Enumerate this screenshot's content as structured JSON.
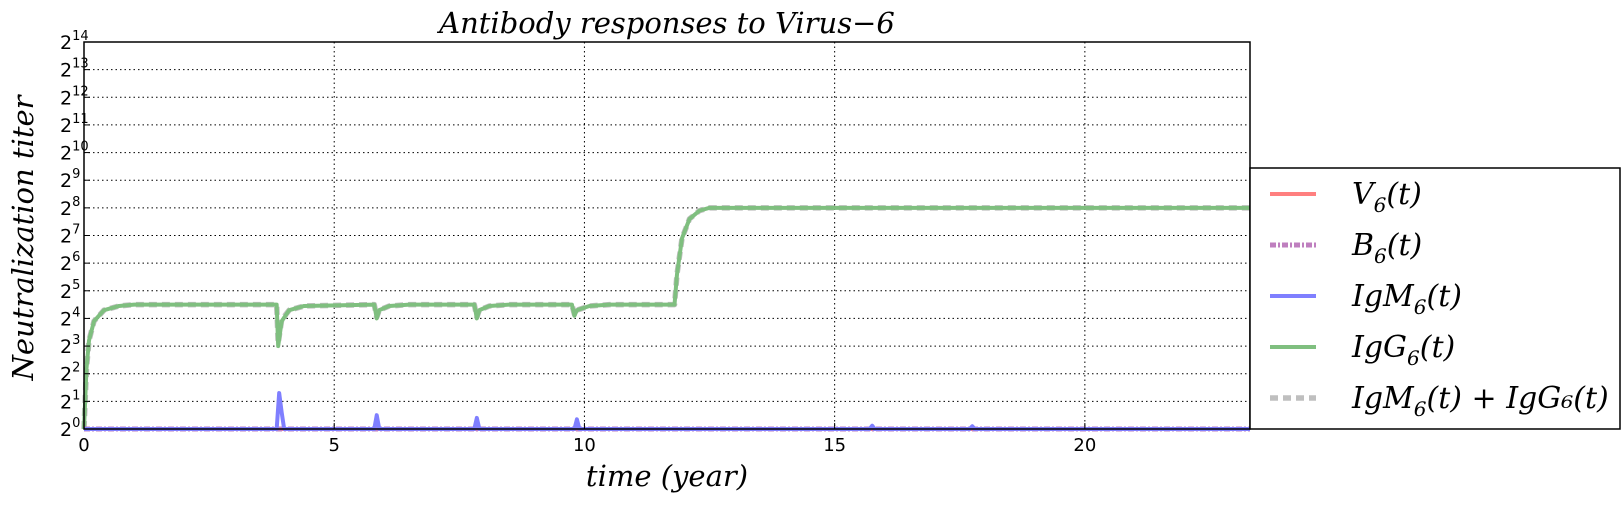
{
  "chart_data": {
    "type": "line",
    "title": "Antibody responses to Virus−6",
    "xlabel": "time (year)",
    "ylabel": "Neutralization titer",
    "xlim": [
      0,
      23.3
    ],
    "ylim_log2": [
      0,
      14
    ],
    "yscale": "log2",
    "grid": true,
    "legend_position": "outside-right",
    "x_ticks": [
      0,
      5,
      10,
      15,
      20
    ],
    "y_ticks": [
      {
        "base": "2",
        "exp": "0"
      },
      {
        "base": "2",
        "exp": "1"
      },
      {
        "base": "2",
        "exp": "2"
      },
      {
        "base": "2",
        "exp": "3"
      },
      {
        "base": "2",
        "exp": "4"
      },
      {
        "base": "2",
        "exp": "5"
      },
      {
        "base": "2",
        "exp": "6"
      },
      {
        "base": "2",
        "exp": "7"
      },
      {
        "base": "2",
        "exp": "8"
      },
      {
        "base": "2",
        "exp": "9"
      },
      {
        "base": "2",
        "exp": "10"
      },
      {
        "base": "2",
        "exp": "11"
      },
      {
        "base": "2",
        "exp": "12"
      },
      {
        "base": "2",
        "exp": "13"
      },
      {
        "base": "2",
        "exp": "14"
      }
    ],
    "series": [
      {
        "name": "V6(t)",
        "legend_main": "V",
        "legend_sub": "6",
        "legend_tail": "(t)",
        "color": "#ff7f7f",
        "style": "solid",
        "x": [
          0,
          23.3
        ],
        "y_log2": [
          0,
          0
        ]
      },
      {
        "name": "B6(t)",
        "legend_main": "B",
        "legend_sub": "6",
        "legend_tail": "(t)",
        "color": "#bf7fbf",
        "style": "dashdot",
        "x": [
          0,
          23.3
        ],
        "y_log2": [
          0,
          0
        ]
      },
      {
        "name": "IgM6(t)",
        "legend_main": "IgM",
        "legend_sub": "6",
        "legend_tail": "(t)",
        "color": "#7f7fff",
        "style": "solid",
        "x": [
          0,
          3.85,
          3.9,
          3.95,
          4.0,
          5.8,
          5.85,
          5.9,
          7.8,
          7.85,
          7.9,
          9.8,
          9.85,
          9.9,
          15.7,
          15.75,
          15.8,
          17.7,
          17.75,
          17.8,
          23.3
        ],
        "y_log2": [
          0,
          0,
          1.3,
          0.6,
          0,
          0,
          0.5,
          0,
          0,
          0.4,
          0,
          0,
          0.35,
          0,
          0,
          0.12,
          0,
          0,
          0.1,
          0,
          0
        ]
      },
      {
        "name": "IgG6(t)",
        "legend_main": "IgG",
        "legend_sub": "6",
        "legend_tail": "(t)",
        "color": "#7fbf7f",
        "style": "solid",
        "x": [
          0,
          0.05,
          0.1,
          0.2,
          0.4,
          0.7,
          1.0,
          3.85,
          3.88,
          3.95,
          4.1,
          4.4,
          5.8,
          5.85,
          5.9,
          6.1,
          6.5,
          7.8,
          7.85,
          7.9,
          8.1,
          8.5,
          9.75,
          9.8,
          9.85,
          10.1,
          10.5,
          11.8,
          11.85,
          11.95,
          12.1,
          12.3,
          12.5,
          12.8,
          23.3
        ],
        "y_log2": [
          0,
          2.2,
          3.2,
          3.9,
          4.3,
          4.45,
          4.5,
          4.5,
          3.0,
          3.9,
          4.3,
          4.45,
          4.5,
          4.0,
          4.3,
          4.45,
          4.5,
          4.5,
          4.0,
          4.3,
          4.45,
          4.5,
          4.5,
          4.1,
          4.3,
          4.45,
          4.5,
          4.5,
          5.6,
          6.9,
          7.6,
          7.9,
          8.0,
          8.0,
          8.0
        ]
      },
      {
        "name": "IgM6(t)+IgG6(t)",
        "legend_main": "IgM",
        "legend_sub": "6",
        "legend_tail": "(t) + IgG₆(t)",
        "color": "#bfbfbf",
        "style": "dashed",
        "x": [
          0,
          0.05,
          0.1,
          0.2,
          0.4,
          0.7,
          1.0,
          3.85,
          3.88,
          3.95,
          4.1,
          4.4,
          5.8,
          5.85,
          5.9,
          6.1,
          6.5,
          7.8,
          7.85,
          7.9,
          8.1,
          8.5,
          9.75,
          9.8,
          9.85,
          10.1,
          10.5,
          11.8,
          11.85,
          11.95,
          12.1,
          12.3,
          12.5,
          12.8,
          23.3
        ],
        "y_log2": [
          0,
          2.2,
          3.2,
          3.9,
          4.3,
          4.45,
          4.5,
          4.5,
          3.1,
          3.95,
          4.3,
          4.45,
          4.5,
          4.05,
          4.3,
          4.45,
          4.5,
          4.5,
          4.05,
          4.3,
          4.45,
          4.5,
          4.5,
          4.15,
          4.3,
          4.45,
          4.5,
          4.5,
          5.6,
          6.9,
          7.6,
          7.9,
          8.0,
          8.0,
          8.0
        ]
      }
    ]
  }
}
